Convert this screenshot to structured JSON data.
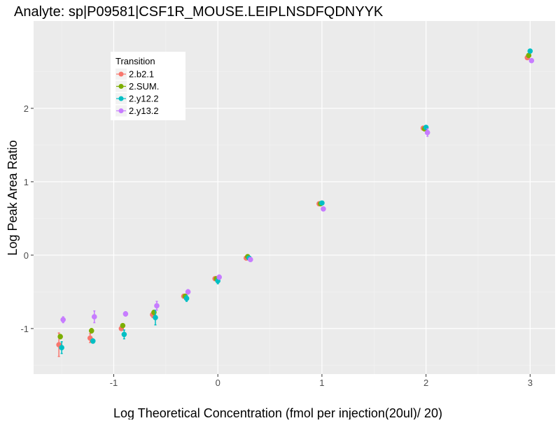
{
  "chart_data": {
    "type": "scatter",
    "title": "Analyte: sp|P09581|CSF1R_MOUSE.LEIPLNSDFQDNYYK",
    "xlabel": "Log Theoretical Concentration (fmol per injection(20ul)/ 20)",
    "ylabel": "Log Peak Area Ratio",
    "xlim": [
      -1.77,
      3.24
    ],
    "ylim": [
      -1.62,
      3.19
    ],
    "xticks": [
      -1,
      0,
      1,
      2,
      3
    ],
    "xtick_labels": [
      "-1",
      "0",
      "1",
      "2",
      "3"
    ],
    "yticks": [
      -1,
      0,
      1,
      2
    ],
    "ytick_labels": [
      "-1",
      "0",
      "1",
      "2"
    ],
    "grid": true,
    "legend": {
      "title": "Transition",
      "position": "top-left-inside"
    },
    "x": [
      -1.5,
      -1.2,
      -0.9,
      -0.6,
      -0.3,
      0,
      0.3,
      1,
      2,
      3
    ],
    "series": [
      {
        "name": "2.b2.1",
        "color": "#F8766D",
        "values": [
          -1.22,
          -1.13,
          -1.0,
          -0.81,
          -0.56,
          -0.32,
          -0.04,
          0.7,
          1.73,
          2.69
        ],
        "err": [
          0.16,
          0.06,
          0.02,
          0.04,
          0.02,
          0.02,
          0.02,
          0.02,
          0.02,
          0.02
        ]
      },
      {
        "name": "2.SUM.",
        "color": "#7CAE00",
        "values": [
          -1.11,
          -1.03,
          -0.96,
          -0.78,
          -0.56,
          -0.32,
          -0.02,
          0.7,
          1.72,
          2.72
        ],
        "err": [
          0.03,
          0.03,
          0.02,
          0.03,
          0.02,
          0.02,
          0.02,
          0.02,
          0.02,
          0.02
        ]
      },
      {
        "name": "2.y12.2",
        "color": "#00BFC4",
        "values": [
          -1.26,
          -1.17,
          -1.08,
          -0.85,
          -0.59,
          -0.35,
          -0.04,
          0.71,
          1.74,
          2.78
        ],
        "err": [
          0.08,
          0.03,
          0.06,
          0.1,
          0.04,
          0.04,
          0.02,
          0.02,
          0.02,
          0.02
        ]
      },
      {
        "name": "2.y13.2",
        "color": "#C77CFF",
        "values": [
          -0.88,
          -0.84,
          -0.8,
          -0.69,
          -0.5,
          -0.3,
          -0.06,
          0.63,
          1.67,
          2.65
        ],
        "err": [
          0.04,
          0.08,
          0.03,
          0.06,
          0.03,
          0.03,
          0.02,
          0.02,
          0.05,
          0.02
        ]
      }
    ]
  }
}
